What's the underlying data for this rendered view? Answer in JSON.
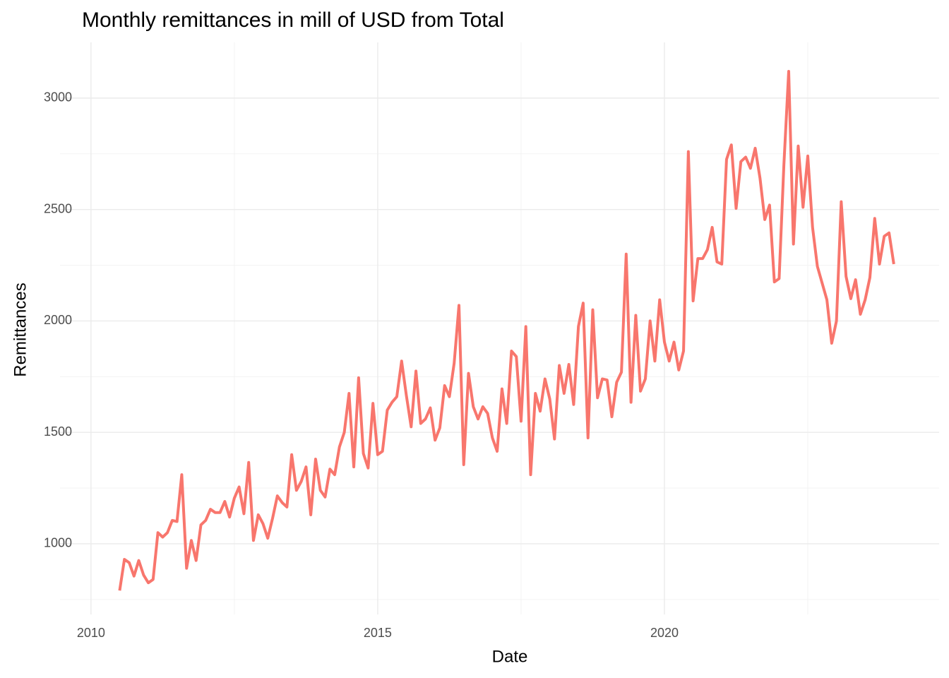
{
  "chart_data": {
    "type": "line",
    "title": "Monthly remittances in mill of USD from Total",
    "x_label": "Date",
    "y_label": "Remittances",
    "xlim": [
      2009.46,
      2024.79
    ],
    "ylim": [
      683,
      3250
    ],
    "xticks": [
      2010,
      2015,
      2020
    ],
    "yticks": [
      1000,
      1500,
      2000,
      2500,
      3000
    ],
    "xminor": [
      2012.5,
      2017.5,
      2022.5
    ],
    "yminor": [
      750,
      1250,
      1750,
      2250,
      2750
    ],
    "grid": true,
    "x": [
      2010.5,
      2010.583,
      2010.667,
      2010.75,
      2010.833,
      2010.917,
      2011,
      2011.083,
      2011.167,
      2011.25,
      2011.333,
      2011.417,
      2011.5,
      2011.583,
      2011.667,
      2011.75,
      2011.833,
      2011.917,
      2012,
      2012.083,
      2012.167,
      2012.25,
      2012.333,
      2012.417,
      2012.5,
      2012.583,
      2012.667,
      2012.75,
      2012.833,
      2012.917,
      2013,
      2013.083,
      2013.167,
      2013.25,
      2013.333,
      2013.417,
      2013.5,
      2013.583,
      2013.667,
      2013.75,
      2013.833,
      2013.917,
      2014,
      2014.083,
      2014.167,
      2014.25,
      2014.333,
      2014.417,
      2014.5,
      2014.583,
      2014.667,
      2014.75,
      2014.833,
      2014.917,
      2015,
      2015.083,
      2015.167,
      2015.25,
      2015.333,
      2015.417,
      2015.5,
      2015.583,
      2015.667,
      2015.75,
      2015.833,
      2015.917,
      2016,
      2016.083,
      2016.167,
      2016.25,
      2016.333,
      2016.417,
      2016.5,
      2016.583,
      2016.667,
      2016.75,
      2016.833,
      2016.917,
      2017,
      2017.083,
      2017.167,
      2017.25,
      2017.333,
      2017.417,
      2017.5,
      2017.583,
      2017.667,
      2017.75,
      2017.833,
      2017.917,
      2018,
      2018.083,
      2018.167,
      2018.25,
      2018.333,
      2018.417,
      2018.5,
      2018.583,
      2018.667,
      2018.75,
      2018.833,
      2018.917,
      2019,
      2019.083,
      2019.167,
      2019.25,
      2019.333,
      2019.417,
      2019.5,
      2019.583,
      2019.667,
      2019.75,
      2019.833,
      2019.917,
      2020,
      2020.083,
      2020.167,
      2020.25,
      2020.333,
      2020.417,
      2020.5,
      2020.583,
      2020.667,
      2020.75,
      2020.833,
      2020.917,
      2021,
      2021.083,
      2021.167,
      2021.25,
      2021.333,
      2021.417,
      2021.5,
      2021.583,
      2021.667,
      2021.75,
      2021.833,
      2021.917,
      2022,
      2022.083,
      2022.167,
      2022.25,
      2022.333,
      2022.417,
      2022.5,
      2022.583,
      2022.667,
      2022.75,
      2022.833,
      2022.917,
      2023,
      2023.083,
      2023.167,
      2023.25,
      2023.333,
      2023.417,
      2023.5,
      2023.583,
      2023.667,
      2023.75,
      2023.833,
      2023.917,
      2024
    ],
    "series": [
      {
        "name": "Total",
        "color": "#F8766D",
        "values": [
          790,
          930,
          915,
          855,
          925,
          860,
          825,
          840,
          1050,
          1030,
          1050,
          1105,
          1100,
          1310,
          890,
          1015,
          925,
          1085,
          1105,
          1155,
          1140,
          1140,
          1190,
          1120,
          1205,
          1255,
          1135,
          1365,
          1015,
          1130,
          1090,
          1025,
          1115,
          1215,
          1185,
          1165,
          1400,
          1240,
          1280,
          1345,
          1130,
          1380,
          1240,
          1210,
          1335,
          1310,
          1435,
          1500,
          1675,
          1345,
          1745,
          1405,
          1340,
          1630,
          1400,
          1415,
          1600,
          1635,
          1660,
          1820,
          1665,
          1525,
          1775,
          1540,
          1560,
          1610,
          1465,
          1520,
          1710,
          1660,
          1810,
          2070,
          1355,
          1765,
          1615,
          1560,
          1615,
          1585,
          1475,
          1415,
          1695,
          1540,
          1865,
          1840,
          1550,
          1975,
          1310,
          1675,
          1595,
          1740,
          1650,
          1470,
          1800,
          1675,
          1805,
          1625,
          1975,
          2080,
          1475,
          2050,
          1655,
          1740,
          1735,
          1570,
          1725,
          1770,
          2300,
          1635,
          2025,
          1685,
          1740,
          2000,
          1820,
          2095,
          1905,
          1820,
          1905,
          1780,
          1865,
          2760,
          2090,
          2280,
          2280,
          2320,
          2420,
          2265,
          2255,
          2725,
          2790,
          2505,
          2715,
          2735,
          2685,
          2775,
          2640,
          2455,
          2520,
          2175,
          2190,
          2700,
          3120,
          2345,
          2785,
          2510,
          2740,
          2420,
          2245,
          2170,
          2095,
          1900,
          2000,
          2535,
          2200,
          2100,
          2185,
          2030,
          2095,
          2195,
          2460,
          2255,
          2380,
          2395,
          2255
        ]
      }
    ]
  }
}
